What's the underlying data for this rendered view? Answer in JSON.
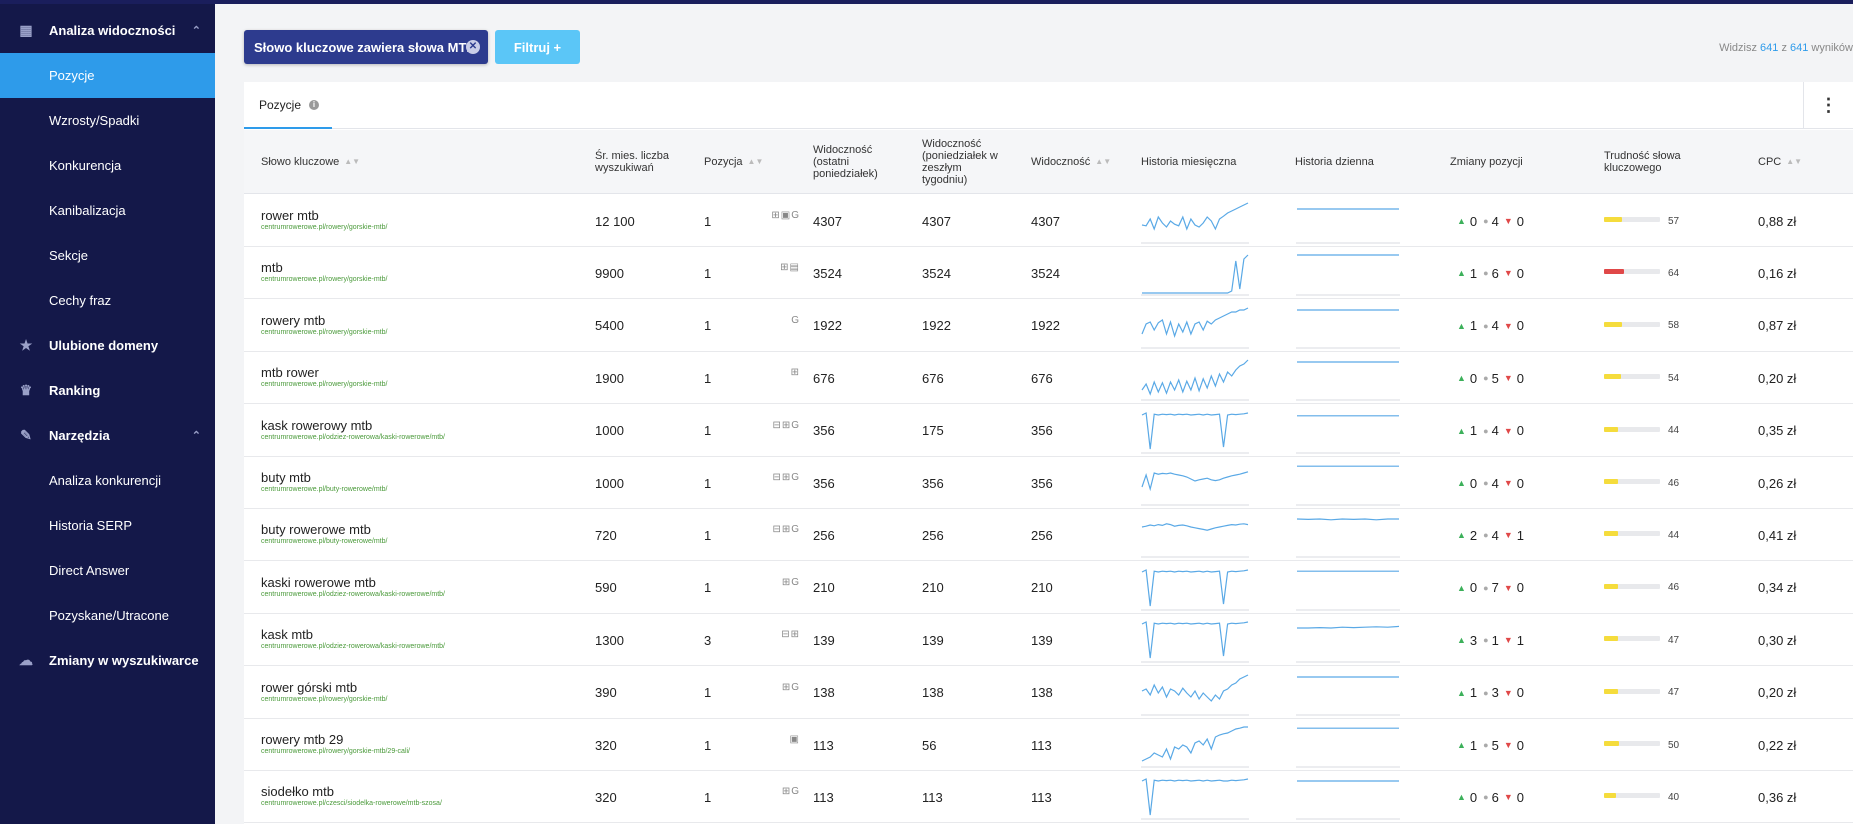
{
  "sidebar": {
    "items": [
      {
        "label": "Analiza widoczności",
        "icon": "dashboard-icon",
        "level": "top",
        "expanded": true
      },
      {
        "label": "Pozycje",
        "level": "sub",
        "active": true
      },
      {
        "label": "Wzrosty/Spadki",
        "level": "sub"
      },
      {
        "label": "Konkurencja",
        "level": "sub"
      },
      {
        "label": "Kanibalizacja",
        "level": "sub"
      },
      {
        "label": "Sekcje",
        "level": "sub"
      },
      {
        "label": "Cechy fraz",
        "level": "sub"
      },
      {
        "label": "Ulubione domeny",
        "icon": "star-icon",
        "level": "top"
      },
      {
        "label": "Ranking",
        "icon": "trophy-icon",
        "level": "top"
      },
      {
        "label": "Narzędzia",
        "icon": "wrench-icon",
        "level": "top",
        "expanded": true
      },
      {
        "label": "Analiza konkurencji",
        "level": "sub"
      },
      {
        "label": "Historia SERP",
        "level": "sub"
      },
      {
        "label": "Direct Answer",
        "level": "sub"
      },
      {
        "label": "Pozyskane/Utracone",
        "level": "sub"
      },
      {
        "label": "Zmiany w wyszukiwarce",
        "icon": "cloud-icon",
        "level": "top"
      }
    ]
  },
  "filter": {
    "chip_label": "Słowo kluczowe zawiera słowa MTB",
    "button_label": "Filtruj +"
  },
  "results": {
    "prefix": "Widzisz",
    "shown": "641",
    "sep": "z",
    "total": "641",
    "suffix": "wyników"
  },
  "tab": {
    "label": "Pozycje"
  },
  "columns": {
    "keyword": "Słowo kluczowe",
    "volume": "Śr. mies. liczba wyszukiwań",
    "position": "Pozycja",
    "vis_last": "Widoczność (ostatni poniedziałek)",
    "vis_prev": "Widoczność (poniedziałek w zeszłym tygodniu)",
    "vis": "Widoczność",
    "hist_month": "Historia miesięczna",
    "hist_day": "Historia dzienna",
    "changes": "Zmiany pozycji",
    "difficulty": "Trudność słowa kluczowego",
    "cpc": "CPC"
  },
  "colors": {
    "accent": "#2e9bea",
    "sidebar": "#141849",
    "chip": "#2d3b8e",
    "filter": "#5bc6f7",
    "diff_yellow": "#f5dc3c",
    "diff_red": "#e04848",
    "up": "#3cb05a",
    "down": "#e04848"
  },
  "rows": [
    {
      "keyword": "rower mtb",
      "url": "centrumrowerowe.pl/rowery/gorskie-mtb/",
      "features": "⊞▣G",
      "volume": "12 100",
      "position": "1",
      "vis_last": "4307",
      "vis_prev": "4307",
      "vis": "4307",
      "up": "0",
      "same": "4",
      "down": "0",
      "difficulty": "57",
      "cpc": "0,88 zł",
      "monthly": [
        40,
        38,
        55,
        30,
        60,
        45,
        35,
        50,
        42,
        38,
        60,
        30,
        55,
        40,
        35,
        45,
        60,
        50,
        30,
        55,
        62,
        70,
        75,
        80,
        85,
        90,
        95
      ],
      "daily": [
        80,
        80,
        80,
        80,
        80,
        80,
        80,
        80,
        80,
        80
      ]
    },
    {
      "keyword": "mtb",
      "url": "centrumrowerowe.pl/rowery/gorskie-mtb/",
      "features": "⊞▤",
      "volume": "9900",
      "position": "1",
      "vis_last": "3524",
      "vis_prev": "3524",
      "vis": "3524",
      "up": "1",
      "same": "6",
      "down": "0",
      "difficulty": "64",
      "cpc": "0,16 zł",
      "monthly": [
        0,
        0,
        0,
        0,
        0,
        0,
        0,
        0,
        0,
        0,
        0,
        0,
        0,
        0,
        0,
        0,
        0,
        0,
        0,
        0,
        0,
        0,
        5,
        80,
        10,
        85,
        95
      ],
      "daily": [
        95,
        95,
        95,
        95,
        95,
        95,
        95,
        95,
        95,
        95
      ]
    },
    {
      "keyword": "rowery mtb",
      "url": "centrumrowerowe.pl/rowery/gorskie-mtb/",
      "features": "G",
      "volume": "5400",
      "position": "1",
      "vis_last": "1922",
      "vis_prev": "1922",
      "vis": "1922",
      "up": "1",
      "same": "4",
      "down": "0",
      "difficulty": "58",
      "cpc": "0,87 zł",
      "monthly": [
        30,
        55,
        60,
        40,
        58,
        65,
        30,
        60,
        25,
        55,
        35,
        60,
        30,
        55,
        60,
        40,
        62,
        55,
        65,
        70,
        75,
        80,
        85,
        85,
        90,
        90,
        95
      ],
      "daily": [
        90,
        90,
        90,
        90,
        90,
        90,
        90,
        90,
        90,
        90
      ]
    },
    {
      "keyword": "mtb rower",
      "url": "centrumrowerowe.pl/rowery/gorskie-mtb/",
      "features": "⊞",
      "volume": "1900",
      "position": "1",
      "vis_last": "676",
      "vis_prev": "676",
      "vis": "676",
      "up": "0",
      "same": "5",
      "down": "0",
      "difficulty": "54",
      "cpc": "0,20 zł",
      "monthly": [
        20,
        35,
        10,
        40,
        15,
        38,
        12,
        40,
        20,
        45,
        15,
        42,
        20,
        50,
        18,
        48,
        25,
        55,
        30,
        60,
        40,
        65,
        55,
        70,
        80,
        85,
        95
      ],
      "daily": [
        90,
        90,
        90,
        90,
        90,
        90,
        90,
        90,
        90,
        90
      ]
    },
    {
      "keyword": "kask rowerowy mtb",
      "url": "centrumrowerowe.pl/odziez-rowerowa/kaski-rowerowe/mtb/",
      "features": "⊟⊞G",
      "volume": "1000",
      "position": "1",
      "vis_last": "356",
      "vis_prev": "175",
      "vis": "356",
      "up": "1",
      "same": "4",
      "down": "0",
      "difficulty": "44",
      "cpc": "0,35 zł",
      "monthly": [
        90,
        95,
        5,
        92,
        90,
        92,
        91,
        92,
        90,
        92,
        91,
        92,
        90,
        91,
        92,
        90,
        92,
        90,
        91,
        92,
        10,
        90,
        92,
        91,
        92,
        93,
        95
      ],
      "daily": [
        88,
        88,
        88,
        88,
        88,
        88,
        88,
        88,
        88,
        88
      ]
    },
    {
      "keyword": "buty mtb",
      "url": "centrumrowerowe.pl/buty-rowerowe/mtb/",
      "features": "⊟⊞G",
      "volume": "1000",
      "position": "1",
      "vis_last": "356",
      "vis_prev": "356",
      "vis": "356",
      "up": "0",
      "same": "4",
      "down": "0",
      "difficulty": "46",
      "cpc": "0,26 zł",
      "monthly": [
        40,
        70,
        35,
        75,
        72,
        74,
        73,
        75,
        72,
        70,
        68,
        65,
        60,
        55,
        58,
        60,
        62,
        58,
        56,
        58,
        62,
        65,
        68,
        70,
        72,
        75,
        78
      ],
      "daily": [
        92,
        92,
        92,
        92,
        92,
        92,
        92,
        92,
        92,
        92
      ]
    },
    {
      "keyword": "buty rowerowe mtb",
      "url": "centrumrowerowe.pl/buty-rowerowe/mtb/",
      "features": "⊟⊞G",
      "volume": "720",
      "position": "1",
      "vis_last": "256",
      "vis_prev": "256",
      "vis": "256",
      "up": "2",
      "same": "4",
      "down": "1",
      "difficulty": "44",
      "cpc": "0,41 zł",
      "monthly": [
        70,
        72,
        75,
        73,
        76,
        74,
        78,
        76,
        72,
        74,
        75,
        73,
        70,
        68,
        66,
        64,
        62,
        65,
        68,
        70,
        72,
        74,
        76,
        75,
        77,
        78,
        76
      ],
      "daily": [
        90,
        89,
        90,
        88,
        90,
        89,
        90,
        88,
        90,
        90
      ]
    },
    {
      "keyword": "kaski rowerowe mtb",
      "url": "centrumrowerowe.pl/odziez-rowerowa/kaski-rowerowe/mtb/",
      "features": "⊞G",
      "volume": "590",
      "position": "1",
      "vis_last": "210",
      "vis_prev": "210",
      "vis": "210",
      "up": "0",
      "same": "7",
      "down": "0",
      "difficulty": "46",
      "cpc": "0,34 zł",
      "monthly": [
        90,
        95,
        5,
        92,
        90,
        92,
        91,
        92,
        90,
        92,
        91,
        92,
        90,
        91,
        92,
        90,
        92,
        90,
        91,
        92,
        10,
        90,
        92,
        91,
        92,
        93,
        95
      ],
      "daily": [
        92,
        92,
        92,
        92,
        92,
        92,
        92,
        92,
        92,
        92
      ]
    },
    {
      "keyword": "kask mtb",
      "url": "centrumrowerowe.pl/odziez-rowerowa/kaski-rowerowe/mtb/",
      "features": "⊟⊞",
      "volume": "1300",
      "position": "3",
      "vis_last": "139",
      "vis_prev": "139",
      "vis": "139",
      "up": "3",
      "same": "1",
      "down": "1",
      "difficulty": "47",
      "cpc": "0,30 zł",
      "monthly": [
        90,
        95,
        5,
        92,
        90,
        92,
        91,
        92,
        90,
        92,
        91,
        92,
        90,
        91,
        92,
        90,
        92,
        90,
        91,
        92,
        10,
        90,
        92,
        91,
        92,
        93,
        95
      ],
      "daily": [
        80,
        80,
        81,
        80,
        82,
        81,
        82,
        83,
        82,
        84
      ]
    },
    {
      "keyword": "rower górski mtb",
      "url": "centrumrowerowe.pl/rowery/gorskie-mtb/",
      "features": "⊞G",
      "volume": "390",
      "position": "1",
      "vis_last": "138",
      "vis_prev": "138",
      "vis": "138",
      "up": "1",
      "same": "3",
      "down": "0",
      "difficulty": "47",
      "cpc": "0,20 zł",
      "monthly": [
        55,
        60,
        45,
        70,
        50,
        65,
        40,
        60,
        55,
        45,
        62,
        50,
        40,
        55,
        35,
        50,
        40,
        30,
        45,
        35,
        55,
        60,
        70,
        75,
        85,
        90,
        95
      ],
      "daily": [
        90,
        90,
        90,
        90,
        90,
        90,
        90,
        90,
        90,
        90
      ]
    },
    {
      "keyword": "rowery mtb 29",
      "url": "centrumrowerowe.pl/rowery/gorskie-mtb/29-cali/",
      "features": "▣",
      "volume": "320",
      "position": "1",
      "vis_last": "113",
      "vis_prev": "56",
      "vis": "113",
      "up": "1",
      "same": "5",
      "down": "0",
      "difficulty": "50",
      "cpc": "0,22 zł",
      "monthly": [
        10,
        15,
        20,
        30,
        25,
        20,
        40,
        15,
        45,
        40,
        50,
        45,
        30,
        55,
        60,
        50,
        65,
        40,
        70,
        75,
        78,
        80,
        85,
        90,
        92,
        95,
        95
      ],
      "daily": [
        92,
        92,
        92,
        92,
        92,
        92,
        92,
        92,
        92,
        92
      ]
    },
    {
      "keyword": "siodełko mtb",
      "url": "centrumrowerowe.pl/czesci/siodelka-rowerowe/mtb-szosa/",
      "features": "⊞G",
      "volume": "320",
      "position": "1",
      "vis_last": "113",
      "vis_prev": "113",
      "vis": "113",
      "up": "0",
      "same": "6",
      "down": "0",
      "difficulty": "40",
      "cpc": "0,36 zł",
      "monthly": [
        90,
        95,
        5,
        92,
        90,
        92,
        91,
        92,
        90,
        92,
        91,
        92,
        90,
        91,
        92,
        90,
        92,
        90,
        91,
        92,
        90,
        90,
        92,
        91,
        92,
        93,
        95
      ],
      "daily": [
        90,
        90,
        90,
        90,
        90,
        90,
        90,
        90,
        90,
        90
      ]
    }
  ]
}
